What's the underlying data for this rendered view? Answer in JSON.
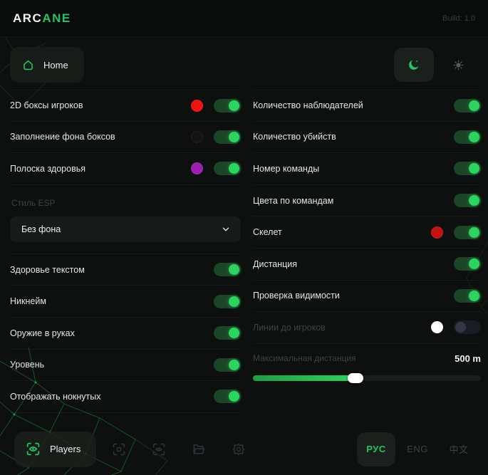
{
  "app": {
    "brand_left": "ARC",
    "brand_right": "ANE",
    "build": "Build: 1.0"
  },
  "nav": {
    "home_label": "Home"
  },
  "left_column": {
    "toggles_top": [
      {
        "label": "2D боксы игроков",
        "dot": "#f01111",
        "on": true
      },
      {
        "label": "Заполнение фона боксов",
        "dot": "#141414",
        "on": true
      },
      {
        "label": "Полоска здоровья",
        "dot": "#9c1fb0",
        "on": true
      }
    ],
    "select": {
      "label": "Стиль ESP",
      "value": "Без фона"
    },
    "toggles_bottom": [
      {
        "label": "Здоровье текстом",
        "on": true
      },
      {
        "label": "Никнейм",
        "on": true
      },
      {
        "label": "Оружие в руках",
        "on": true
      },
      {
        "label": "Уровень",
        "on": true
      },
      {
        "label": "Отображать нокнутых",
        "on": true
      }
    ]
  },
  "right_column": {
    "toggles": [
      {
        "label": "Количество наблюдателей",
        "on": true
      },
      {
        "label": "Количество убийств",
        "on": true
      },
      {
        "label": "Номер команды",
        "on": true
      },
      {
        "label": "Цвета по командам",
        "on": true
      },
      {
        "label": "Скелет",
        "dot": "#c41212",
        "on": true
      },
      {
        "label": "Дистанция",
        "on": true
      },
      {
        "label": "Проверка видимости",
        "on": true
      },
      {
        "label": "Линии до игроков",
        "dot": "#ffffff",
        "on": false,
        "disabled": true
      }
    ],
    "slider": {
      "label": "Максимальная дистанция",
      "value": "500 m",
      "percent": 45
    }
  },
  "footer": {
    "players_label": "Players",
    "languages": [
      {
        "label": "РУС",
        "active": true
      },
      {
        "label": "ENG",
        "active": false
      },
      {
        "label": "中文",
        "active": false
      }
    ]
  },
  "colors": {
    "accent": "#22c55e",
    "toggle_track_on": "#1c4527",
    "toggle_knob_on": "#2bd45e"
  }
}
